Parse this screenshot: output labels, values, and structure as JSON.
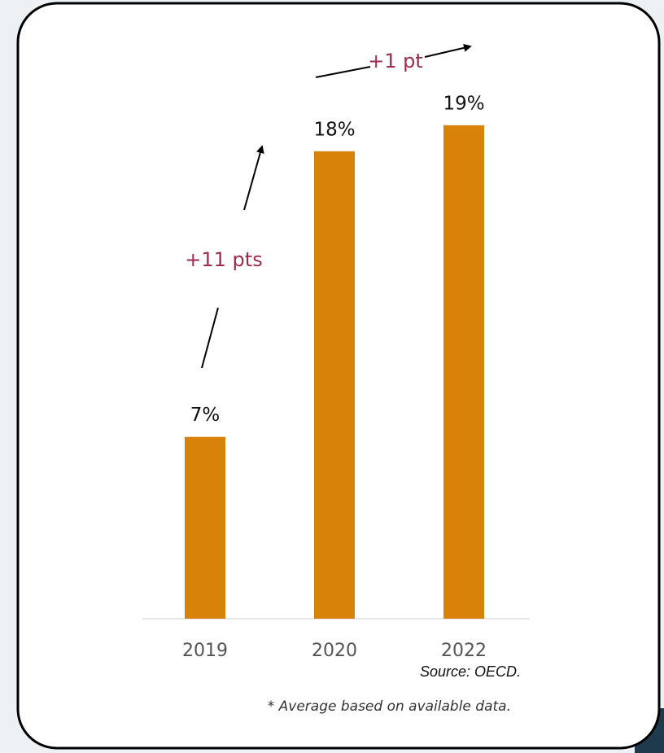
{
  "chart_data": {
    "type": "bar",
    "categories": [
      "2019",
      "2020",
      "2022"
    ],
    "values": [
      7,
      18,
      19
    ],
    "value_labels": [
      "7%",
      "18%",
      "19%"
    ],
    "color": "#d8820a",
    "annotations": [
      "+11 pts",
      "+1 pt"
    ],
    "source": "Source: OECD.",
    "footnote": "* Average based on available data."
  }
}
